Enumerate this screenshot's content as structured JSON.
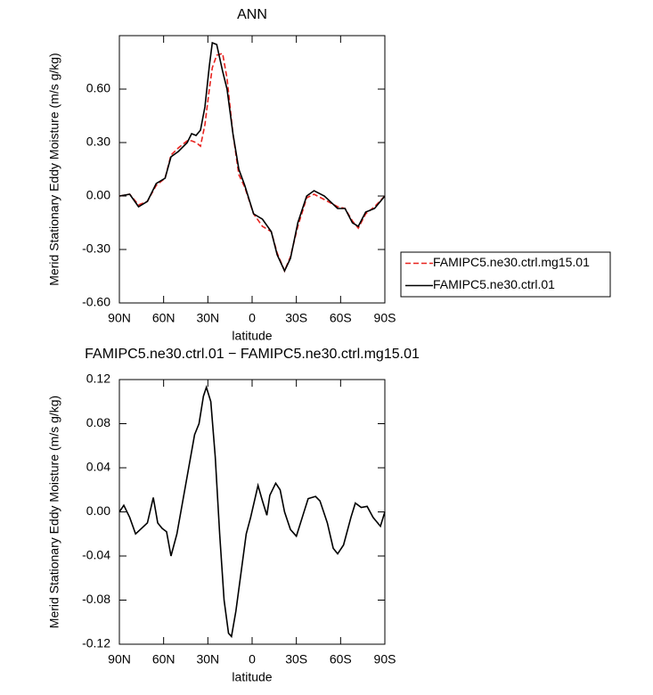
{
  "chart_data": [
    {
      "type": "line",
      "title": "ANN",
      "xlabel": "latitude",
      "ylabel": "Merid Stationary Eddy Moisture (m/s g/kg)",
      "x": [
        90,
        83,
        77,
        71,
        65,
        59,
        55,
        50,
        44,
        41,
        38,
        35,
        32,
        29,
        27,
        24,
        20,
        17,
        13,
        9,
        5,
        -1,
        -7,
        -13,
        -17,
        -22,
        -26,
        -31,
        -37,
        -42,
        -49,
        -58,
        -63,
        -68,
        -72,
        -77,
        -83,
        -90
      ],
      "xlim": [
        90,
        -90
      ],
      "xticks": [
        {
          "value": 90,
          "label": "90N"
        },
        {
          "value": 60,
          "label": "60N"
        },
        {
          "value": 30,
          "label": "30N"
        },
        0,
        {
          "value": -30,
          "label": "30S"
        },
        {
          "value": -60,
          "label": "60S"
        },
        {
          "value": -90,
          "label": "90S"
        }
      ],
      "ylim": [
        -0.6,
        0.9
      ],
      "yticks": [
        {
          "value": -0.6,
          "label": "-0.60"
        },
        {
          "value": -0.3,
          "label": "-0.30"
        },
        {
          "value": 0,
          "label": "0.00"
        },
        {
          "value": 0.3,
          "label": "0.30"
        },
        {
          "value": 0.6,
          "label": "0.60"
        }
      ],
      "legend": "outside-right",
      "series": [
        {
          "name": "FAMIPC5.ne30.ctrl.mg15.01",
          "color": "#e8231f",
          "linestyle": "dashed",
          "values": [
            0.0,
            0.01,
            -0.05,
            -0.03,
            0.06,
            0.1,
            0.23,
            0.27,
            0.31,
            0.31,
            0.3,
            0.28,
            0.4,
            0.6,
            0.72,
            0.79,
            0.8,
            0.66,
            0.35,
            0.12,
            0.05,
            -0.1,
            -0.17,
            -0.2,
            -0.32,
            -0.42,
            -0.34,
            -0.17,
            -0.01,
            0.01,
            -0.02,
            -0.06,
            -0.07,
            -0.14,
            -0.18,
            -0.1,
            -0.06,
            0.0
          ]
        },
        {
          "name": "FAMIPC5.ne30.ctrl.01",
          "color": "#000000",
          "linestyle": "solid",
          "values": [
            0.0,
            0.01,
            -0.06,
            -0.03,
            0.07,
            0.1,
            0.22,
            0.25,
            0.3,
            0.35,
            0.34,
            0.37,
            0.5,
            0.73,
            0.86,
            0.85,
            0.7,
            0.6,
            0.35,
            0.15,
            0.06,
            -0.1,
            -0.13,
            -0.2,
            -0.33,
            -0.42,
            -0.35,
            -0.15,
            0.0,
            0.03,
            0.0,
            -0.07,
            -0.07,
            -0.15,
            -0.17,
            -0.09,
            -0.07,
            0.0
          ]
        }
      ]
    },
    {
      "type": "line",
      "title": "FAMIPC5.ne30.ctrl.01 − FAMIPC5.ne30.ctrl.mg15.01",
      "xlabel": "latitude",
      "ylabel": "Merid Stationary Eddy Moisture (m/s g/kg)",
      "x": [
        90,
        87,
        83,
        79,
        75,
        71,
        67,
        64,
        61,
        58,
        55,
        51,
        47,
        43,
        39,
        36,
        33,
        31,
        28,
        25,
        22,
        19,
        16,
        14,
        11,
        8,
        4,
        1,
        -4,
        -7,
        -10,
        -12,
        -16,
        -19,
        -22,
        -26,
        -30,
        -34,
        -38,
        -43,
        -46,
        -51,
        -55,
        -58,
        -62,
        -67,
        -70,
        -74,
        -78,
        -82,
        -87,
        -90
      ],
      "xlim": [
        90,
        -90
      ],
      "xticks": [
        {
          "value": 90,
          "label": "90N"
        },
        {
          "value": 60,
          "label": "60N"
        },
        {
          "value": 30,
          "label": "30N"
        },
        0,
        {
          "value": -30,
          "label": "30S"
        },
        {
          "value": -60,
          "label": "60S"
        },
        {
          "value": -90,
          "label": "90S"
        }
      ],
      "ylim": [
        -0.12,
        0.12
      ],
      "yticks": [
        {
          "value": -0.12,
          "label": "-0.12"
        },
        {
          "value": -0.08,
          "label": "-0.08"
        },
        {
          "value": -0.04,
          "label": "-0.04"
        },
        {
          "value": 0,
          "label": "0.00"
        },
        {
          "value": 0.04,
          "label": "0.04"
        },
        {
          "value": 0.08,
          "label": "0.08"
        },
        {
          "value": 0.12,
          "label": "0.12"
        }
      ],
      "series": [
        {
          "color": "#000000",
          "linestyle": "solid",
          "values": [
            0.0,
            0.006,
            -0.005,
            -0.02,
            -0.015,
            -0.01,
            0.013,
            -0.01,
            -0.015,
            -0.018,
            -0.04,
            -0.02,
            0.01,
            0.04,
            0.07,
            0.08,
            0.105,
            0.113,
            0.1,
            0.05,
            -0.02,
            -0.08,
            -0.11,
            -0.113,
            -0.09,
            -0.06,
            -0.02,
            -0.005,
            0.024,
            0.01,
            -0.003,
            0.015,
            0.026,
            0.02,
            0.0,
            -0.016,
            -0.022,
            -0.005,
            0.012,
            0.014,
            0.01,
            -0.01,
            -0.033,
            -0.038,
            -0.03,
            -0.005,
            0.008,
            0.004,
            0.005,
            -0.005,
            -0.013,
            0.0
          ]
        }
      ]
    }
  ]
}
